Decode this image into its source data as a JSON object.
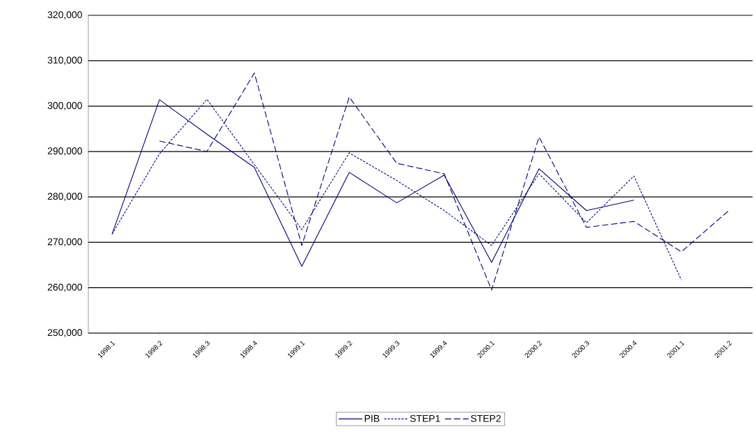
{
  "chart_data": {
    "type": "line",
    "categories": [
      "1998.1",
      "1998.2",
      "1998.3",
      "1998.4",
      "1999.1",
      "1999.2",
      "1999.3",
      "1999.4",
      "2000.1",
      "2000.2",
      "2000.3",
      "2000.4",
      "2001.1",
      "2001.2"
    ],
    "series": [
      {
        "name": "PIB",
        "color": "#000080",
        "line_style": "solid",
        "values": [
          271800,
          301400,
          293800,
          286500,
          264700,
          285400,
          278700,
          284800,
          265600,
          286200,
          277000,
          279300,
          null,
          null
        ]
      },
      {
        "name": "STEP1",
        "color": "#000080",
        "line_style": "dotted",
        "values": [
          271800,
          289500,
          301500,
          287100,
          272800,
          289700,
          283600,
          277000,
          269300,
          285100,
          274300,
          284600,
          261700,
          null
        ]
      },
      {
        "name": "STEP2",
        "color": "#000080",
        "line_style": "dashed",
        "values": [
          null,
          292300,
          290000,
          307300,
          269300,
          302000,
          287400,
          285100,
          259500,
          293200,
          273300,
          274600,
          267900,
          277000
        ]
      }
    ],
    "ylim": [
      250000,
      320000
    ],
    "yticks": [
      {
        "value": 250000,
        "label": "250,000"
      },
      {
        "value": 260000,
        "label": "260,000"
      },
      {
        "value": 270000,
        "label": "270,000"
      },
      {
        "value": 280000,
        "label": "280,000"
      },
      {
        "value": 290000,
        "label": "290,000"
      },
      {
        "value": 300000,
        "label": "300,000"
      },
      {
        "value": 310000,
        "label": "310,000"
      },
      {
        "value": 320000,
        "label": "320,000"
      }
    ],
    "grid": "y",
    "legend": "bottom",
    "marker": "none"
  }
}
